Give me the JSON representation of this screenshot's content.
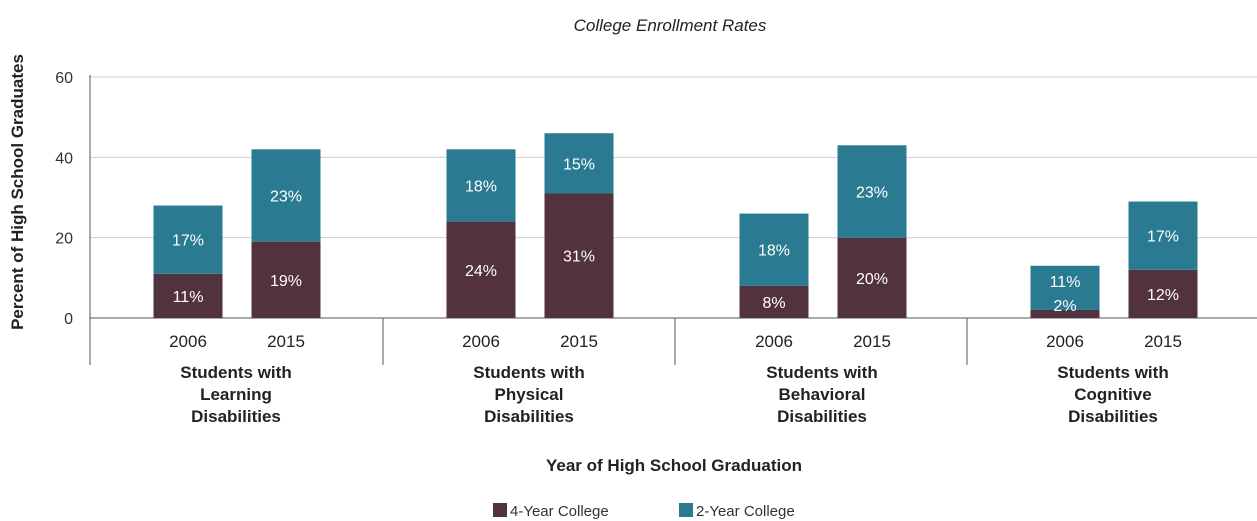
{
  "chart_data": {
    "type": "bar",
    "stacked": true,
    "title": "College Enrollment Rates",
    "xlabel": "Year of High School Graduation",
    "ylabel": "Percent of High School Graduates",
    "ylim": [
      0,
      60
    ],
    "yticks": [
      0,
      20,
      40,
      60
    ],
    "grid": true,
    "legend_position": "bottom-center",
    "groups": [
      {
        "label_lines": [
          "Students with",
          "Learning",
          "Disabilities"
        ],
        "categories": [
          "2006",
          "2015"
        ]
      },
      {
        "label_lines": [
          "Students with",
          "Physical",
          "Disabilities"
        ],
        "categories": [
          "2006",
          "2015"
        ]
      },
      {
        "label_lines": [
          "Students with",
          "Behavioral",
          "Disabilities"
        ],
        "categories": [
          "2006",
          "2015"
        ]
      },
      {
        "label_lines": [
          "Students with",
          "Cognitive",
          "Disabilities"
        ],
        "categories": [
          "2006",
          "2015"
        ]
      }
    ],
    "series": [
      {
        "name": "4-Year College",
        "color": "#53323f",
        "values": [
          11,
          19,
          24,
          31,
          8,
          20,
          2,
          12
        ],
        "labels": [
          "11%",
          "19%",
          "24%",
          "31%",
          "8%",
          "20%",
          "2%",
          "12%"
        ]
      },
      {
        "name": "2-Year College",
        "color": "#2a7b91",
        "values": [
          17,
          23,
          18,
          15,
          18,
          23,
          11,
          17
        ],
        "labels": [
          "17%",
          "23%",
          "18%",
          "15%",
          "18%",
          "23%",
          "11%",
          "17%"
        ]
      }
    ]
  }
}
